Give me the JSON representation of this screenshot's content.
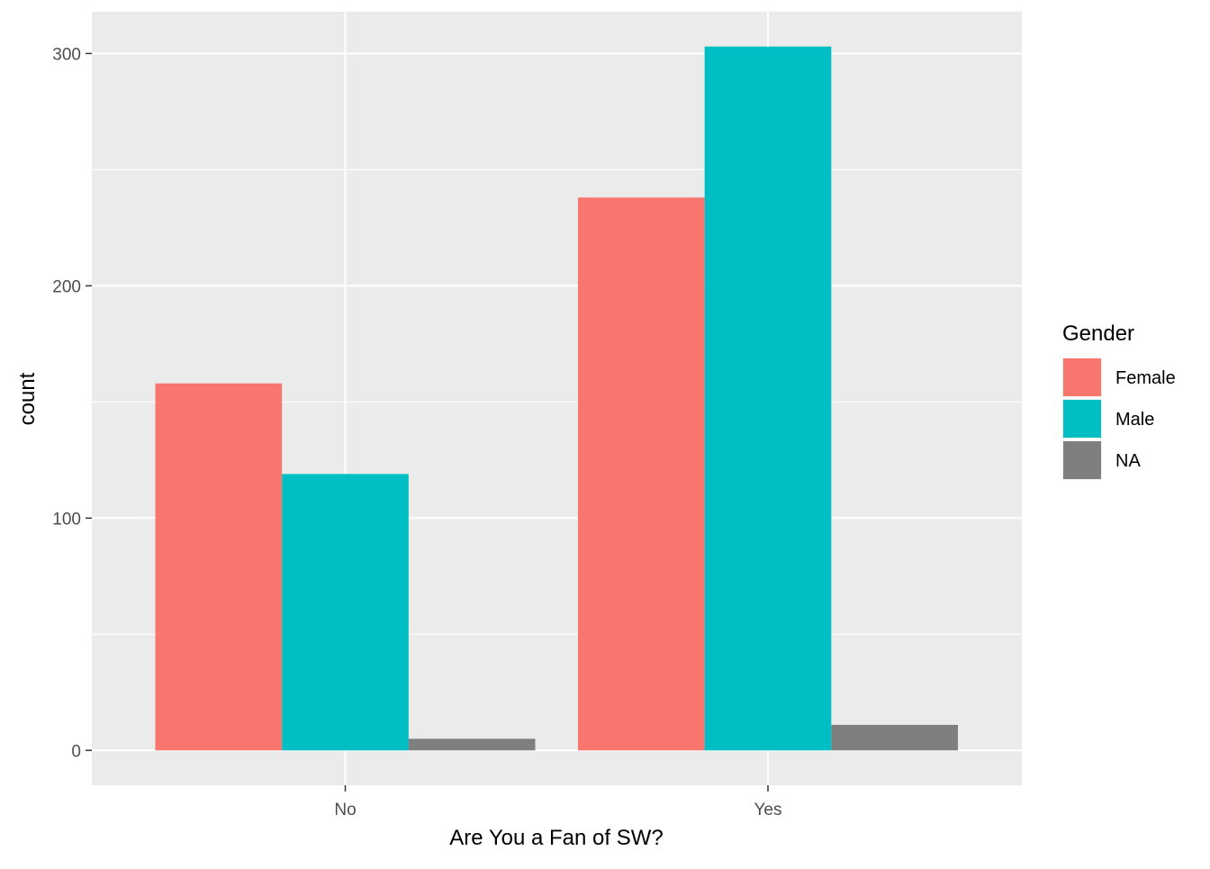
{
  "chart_data": {
    "type": "bar",
    "title": "",
    "xlabel": "Are You a Fan of SW?",
    "ylabel": "count",
    "categories": [
      "No",
      "Yes"
    ],
    "series": [
      {
        "name": "Female",
        "color": "#F8766D",
        "values": [
          158,
          238
        ]
      },
      {
        "name": "Male",
        "color": "#00BFC4",
        "values": [
          119,
          303
        ]
      },
      {
        "name": "NA",
        "color": "#7F7F7F",
        "values": [
          5,
          11
        ]
      }
    ],
    "ylim": [
      -15,
      318
    ],
    "yticks": [
      0,
      100,
      200,
      300
    ],
    "grid": true,
    "legend": {
      "title": "Gender",
      "placement": "right"
    },
    "panel_background": "#EBEBEB"
  }
}
